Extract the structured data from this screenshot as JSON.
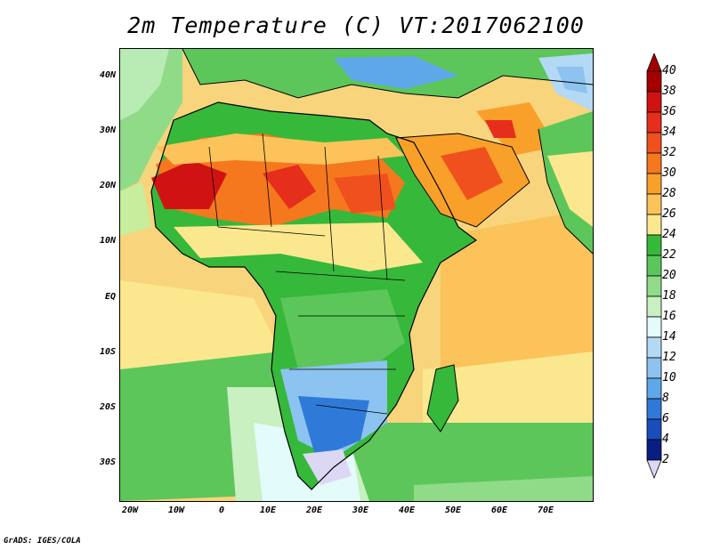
{
  "title": "2m Temperature (C) VT:2017062100",
  "footer": "GrADS: IGES/COLA",
  "map": {
    "region": "Africa, Middle East, Arabian Sea",
    "lat_ticks": [
      "40N",
      "30N",
      "20N",
      "10N",
      "EQ",
      "10S",
      "20S",
      "30S"
    ],
    "lon_ticks": [
      "20W",
      "10W",
      "0",
      "10E",
      "20E",
      "30E",
      "40E",
      "50E",
      "60E",
      "70E"
    ]
  },
  "colorbar": {
    "levels": [
      "40",
      "38",
      "36",
      "34",
      "32",
      "30",
      "28",
      "26",
      "24",
      "22",
      "20",
      "18",
      "16",
      "14",
      "12",
      "10",
      "8",
      "6",
      "4",
      "2"
    ],
    "colors": [
      "#a50000",
      "#d11212",
      "#e62e1c",
      "#f0501e",
      "#f5781e",
      "#f8a02a",
      "#fbc35a",
      "#fbe88e",
      "#36b83a",
      "#5cc65a",
      "#90db88",
      "#c8f0c0",
      "#e4fbfb",
      "#b4d9f5",
      "#8cc3f0",
      "#5ea8ea",
      "#2f7ad8",
      "#1a4cbc",
      "#0a1e82",
      "#dcd8f4"
    ],
    "top_triangle": "#a50000",
    "bottom_triangle": "#dcd8f4"
  }
}
